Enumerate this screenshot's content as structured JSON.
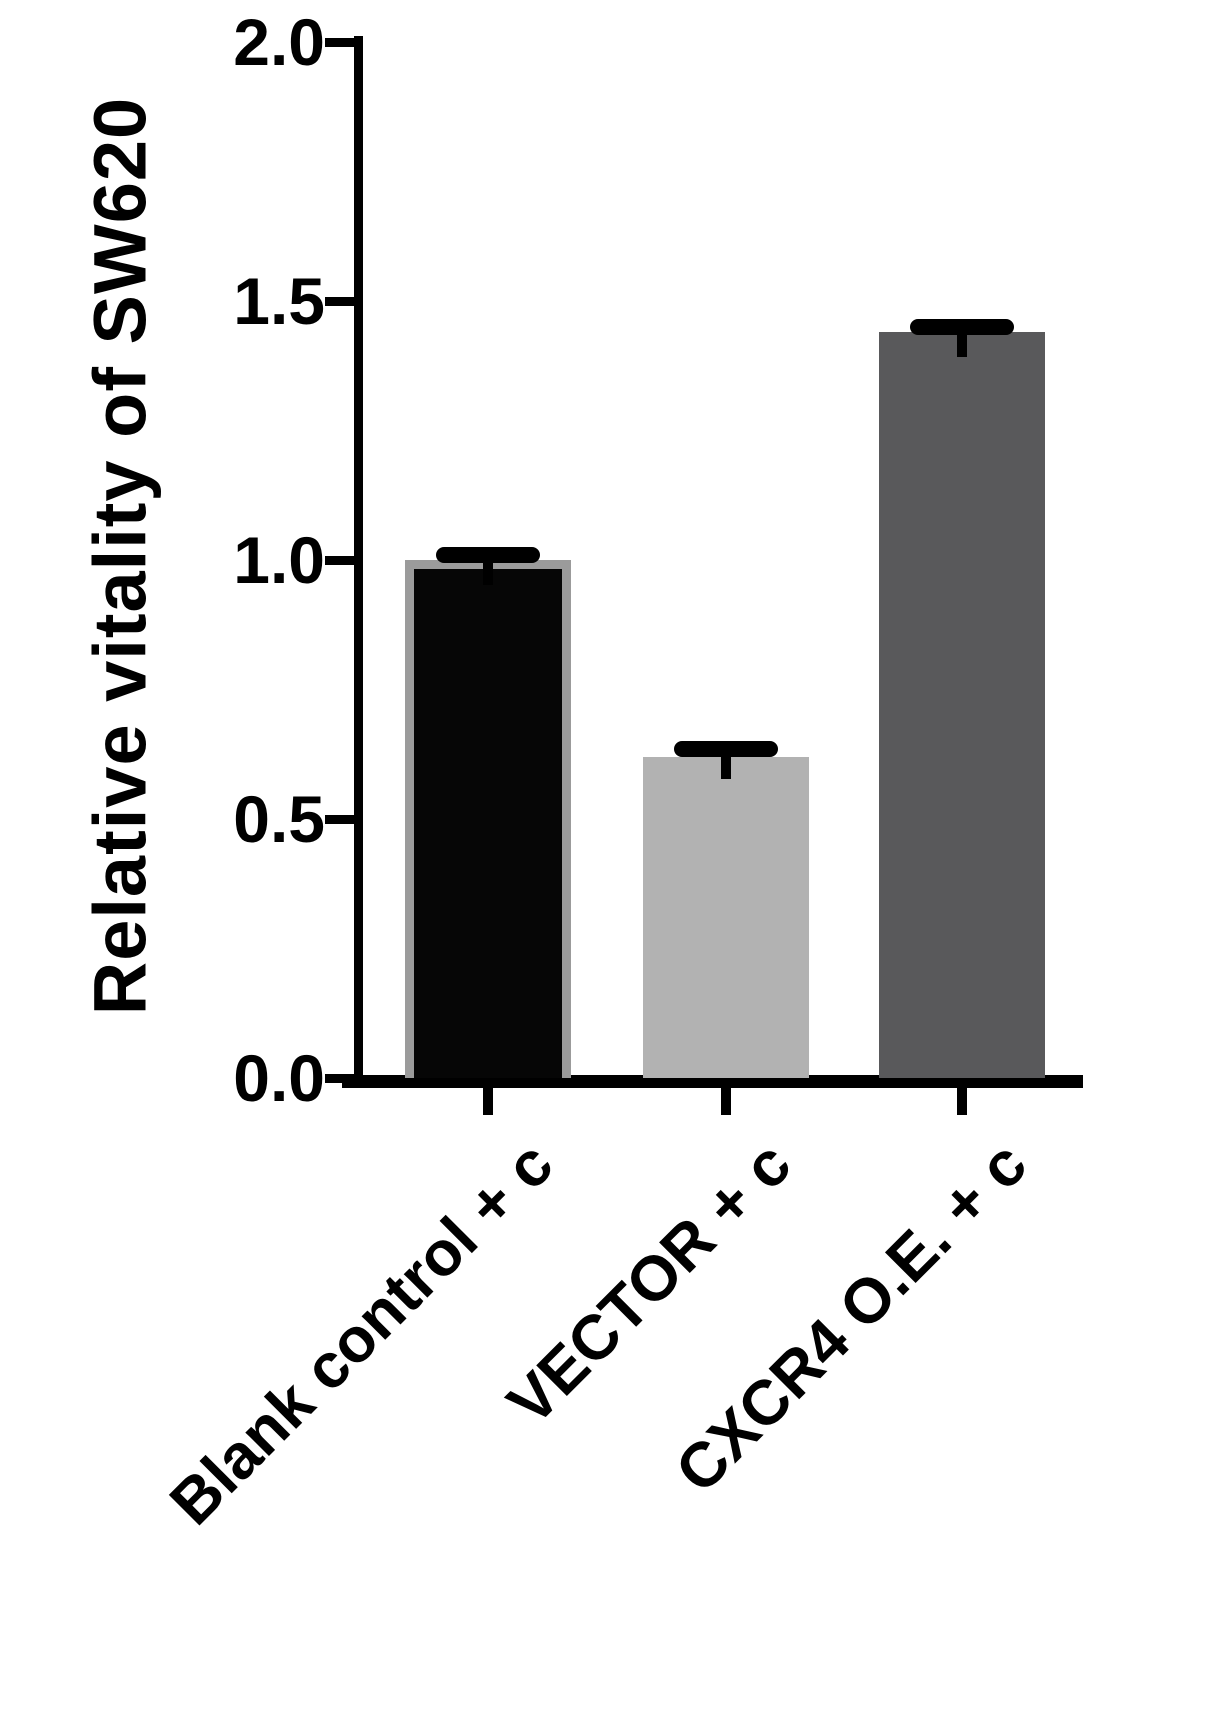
{
  "chart_data": {
    "type": "bar",
    "title": "",
    "xlabel": "",
    "ylabel": "Relative vitality of SW620",
    "ylim": [
      0,
      2.0
    ],
    "y_ticks": [
      0.0,
      0.5,
      1.0,
      1.5,
      2.0
    ],
    "y_tick_labels": [
      "0.0",
      "0.5",
      "1.0",
      "1.5",
      "2.0"
    ],
    "categories": [
      "Blank control + c",
      "VECTOR + c",
      "CXCR4 O.E. + c"
    ],
    "values": [
      1.0,
      0.62,
      1.44
    ],
    "errors": [
      0.01,
      0.015,
      0.01
    ],
    "bar_colors": [
      "#060606",
      "#b2b2b2",
      "#59595b"
    ],
    "bar_edge_colors": [
      "#9b9b9b",
      "#b2b2b2",
      "#59595b"
    ],
    "error_bar_color": "#000000",
    "axis_color": "#000000",
    "background_color": "#ffffff",
    "grid": false,
    "legend": null
  }
}
